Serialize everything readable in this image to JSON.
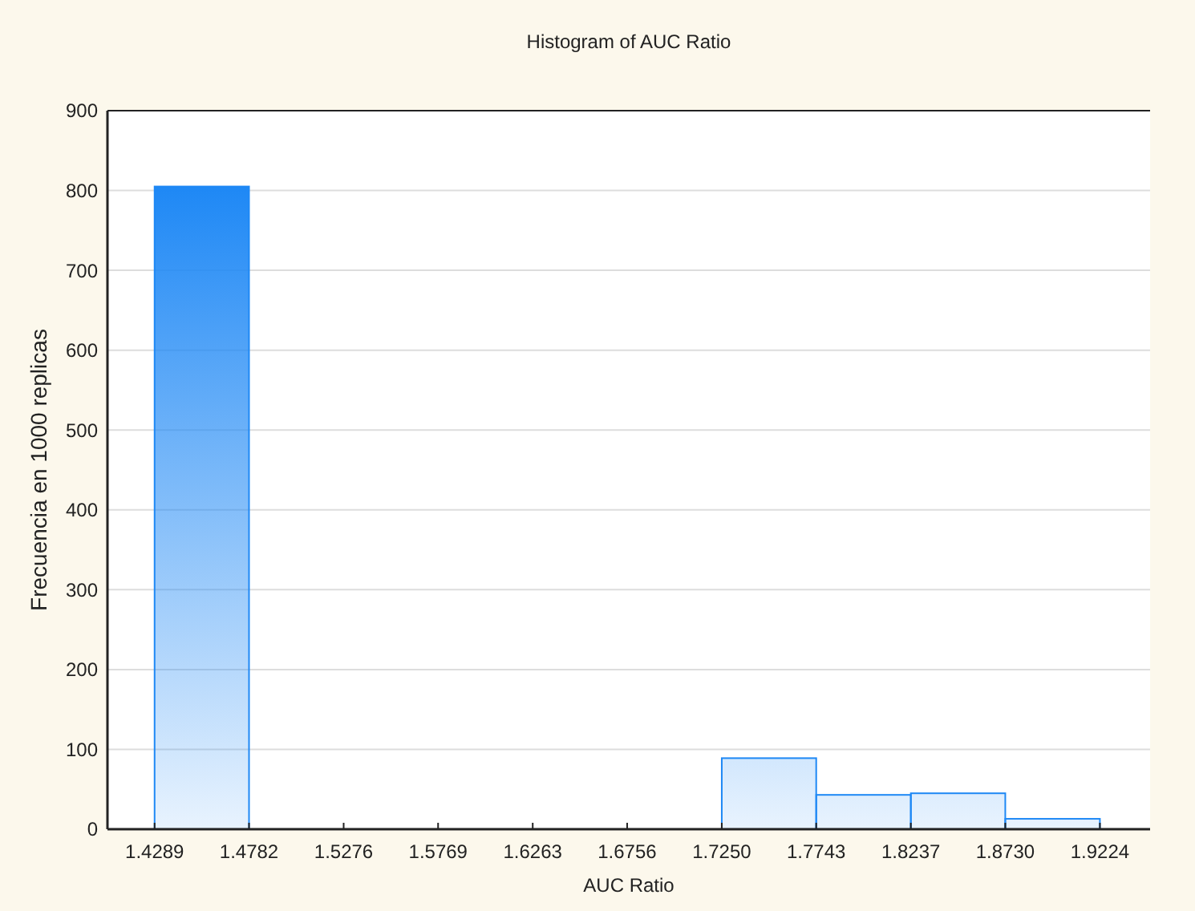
{
  "chart_data": {
    "type": "histogram",
    "title": "Histogram of AUC Ratio",
    "xlabel": "AUC Ratio",
    "ylabel": "Frecuencia en 1000 replicas",
    "bins": [
      1.4289,
      1.4782,
      1.5276,
      1.5769,
      1.6263,
      1.6756,
      1.725,
      1.7743,
      1.8237,
      1.873,
      1.9224
    ],
    "values": [
      805,
      0,
      0,
      0,
      0,
      0,
      89,
      43,
      45,
      13
    ],
    "color": "#1e88f5",
    "xlim": [
      1.4043,
      1.9486
    ],
    "xticks": [
      {
        "value": 1.4289,
        "label": "1.4289"
      },
      {
        "value": 1.4782,
        "label": "1.4782"
      },
      {
        "value": 1.5276,
        "label": "1.5276"
      },
      {
        "value": 1.5769,
        "label": "1.5769"
      },
      {
        "value": 1.6263,
        "label": "1.6263"
      },
      {
        "value": 1.6756,
        "label": "1.6756"
      },
      {
        "value": 1.725,
        "label": "1.7250"
      },
      {
        "value": 1.7743,
        "label": "1.7743"
      },
      {
        "value": 1.8237,
        "label": "1.8237"
      },
      {
        "value": 1.873,
        "label": "1.8730"
      },
      {
        "value": 1.9224,
        "label": "1.9224"
      }
    ],
    "ylim": [
      0,
      900
    ],
    "yticks": [
      0,
      100,
      200,
      300,
      400,
      500,
      600,
      700,
      800,
      900
    ],
    "grid": "y"
  }
}
